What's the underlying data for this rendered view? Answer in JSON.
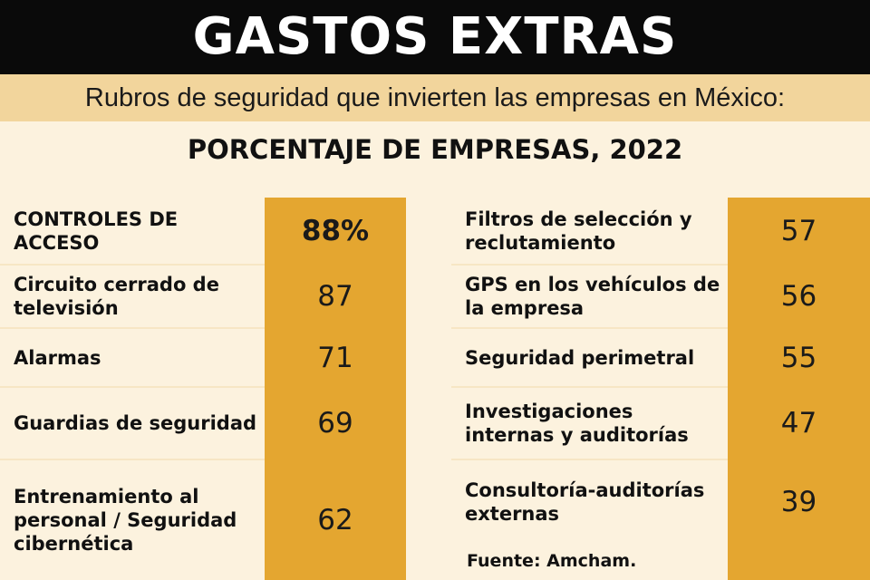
{
  "header": {
    "title": "GASTOS EXTRAS",
    "subtitle": "Rubros de seguridad que invierten las empresas en México:"
  },
  "table": {
    "title": "PORCENTAJE DE EMPRESAS, 2022",
    "left": [
      [
        "CONTROLES DE ACCESO",
        "88%"
      ],
      [
        "Circuito cerrado de televisión",
        "87"
      ],
      [
        "Alarmas",
        "71"
      ],
      [
        "Guardias de seguridad",
        "69"
      ],
      [
        "Entrenamiento al personal / Seguridad cibernética",
        "62"
      ]
    ],
    "right": [
      [
        "Filtros de selección y reclutamiento",
        "57"
      ],
      [
        "GPS en los vehículos de la empresa",
        "56"
      ],
      [
        "Seguridad perimetral",
        "55"
      ],
      [
        "Investigaciones internas y auditorías",
        "47"
      ],
      [
        "Consultoría-auditorías externas",
        "39"
      ]
    ]
  },
  "source": "Fuente: Amcham."
}
